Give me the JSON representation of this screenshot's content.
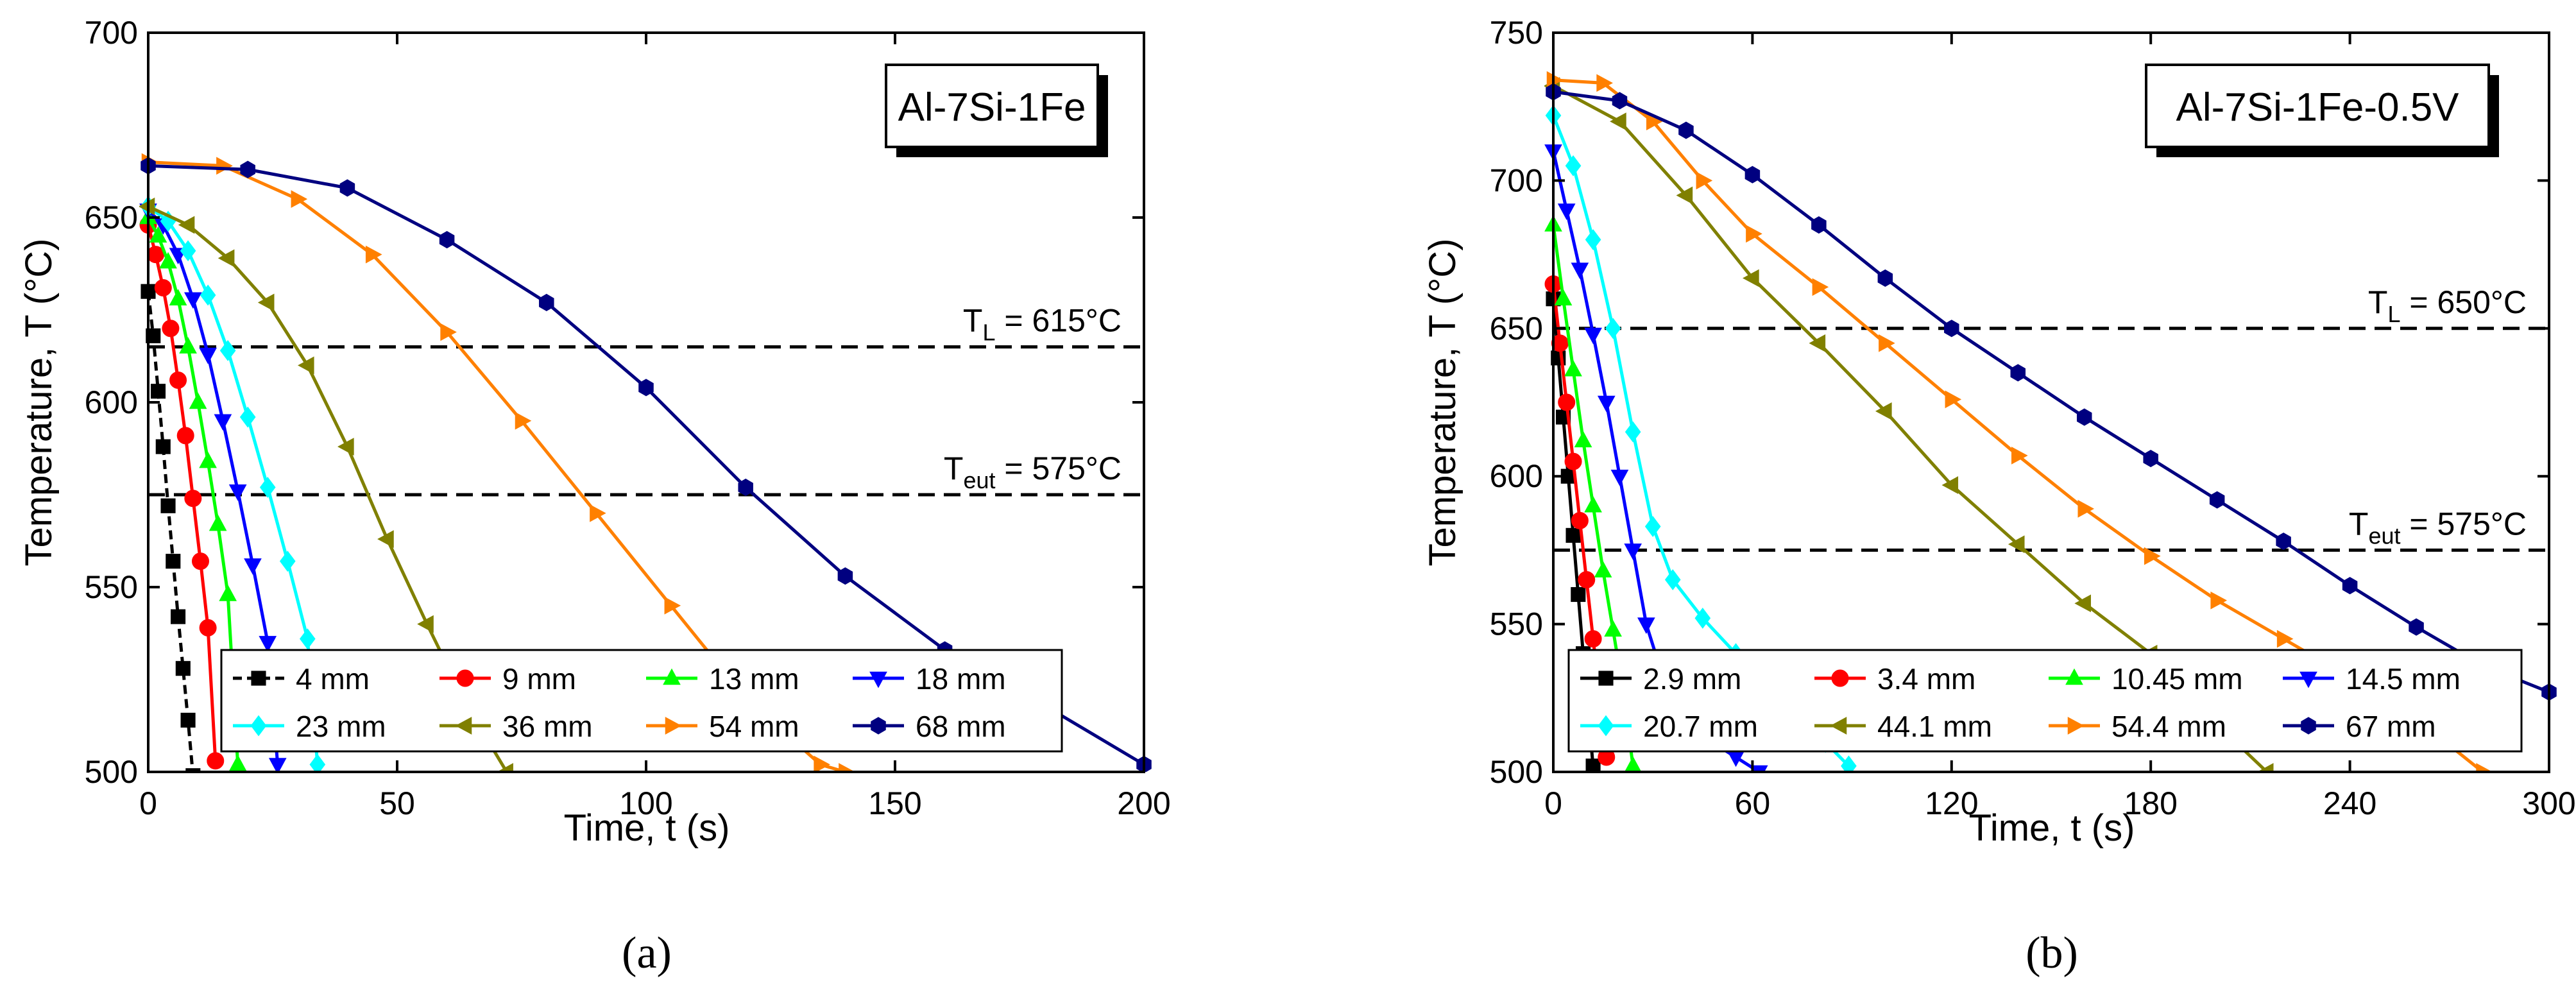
{
  "chart_data": [
    {
      "panel_label": "(a)",
      "type": "line",
      "title": "Al-7Si-1Fe",
      "xlabel": "Time, t (s)",
      "ylabel": "Temperature, T (°C)",
      "xlim": [
        0,
        200
      ],
      "ylim": [
        500,
        700
      ],
      "xticks": [
        0,
        50,
        100,
        150,
        200
      ],
      "yticks": [
        500,
        550,
        600,
        650,
        700
      ],
      "grid": false,
      "legend_position": "bottom-center",
      "reference_lines": [
        {
          "label_main": "T",
          "label_sub": "L",
          "label_rest": " = 615°C",
          "y": 615
        },
        {
          "label_main": "T",
          "label_sub": "eut",
          "label_rest": " = 575°C",
          "y": 575
        }
      ],
      "series": [
        {
          "name": "4 mm",
          "color": "#000000",
          "marker": "square",
          "dashed": true,
          "x": [
            0,
            1,
            2,
            3,
            4,
            5,
            6,
            7,
            8,
            9
          ],
          "y": [
            630,
            618,
            603,
            588,
            572,
            557,
            542,
            528,
            514,
            499
          ]
        },
        {
          "name": "9 mm",
          "color": "#ff0000",
          "marker": "circle",
          "dashed": false,
          "x": [
            0,
            1.5,
            3,
            4.5,
            6,
            7.5,
            9,
            10.5,
            12,
            13.5
          ],
          "y": [
            648,
            640,
            631,
            620,
            606,
            591,
            574,
            557,
            539,
            503
          ]
        },
        {
          "name": "13 mm",
          "color": "#00ff00",
          "marker": "triangle-up",
          "dashed": false,
          "x": [
            0,
            2,
            4,
            6,
            8,
            10,
            12,
            14,
            16,
            18
          ],
          "y": [
            650,
            645,
            638,
            628,
            615,
            600,
            584,
            567,
            548,
            502
          ]
        },
        {
          "name": "18 mm",
          "color": "#0000ff",
          "marker": "triangle-down",
          "dashed": false,
          "x": [
            0,
            3,
            6,
            9,
            12,
            15,
            18,
            21,
            24,
            26
          ],
          "y": [
            652,
            648,
            640,
            628,
            613,
            595,
            576,
            556,
            535,
            502
          ]
        },
        {
          "name": "23 mm",
          "color": "#00ffff",
          "marker": "diamond",
          "dashed": false,
          "x": [
            0,
            4,
            8,
            12,
            16,
            20,
            24,
            28,
            32,
            34
          ],
          "y": [
            653,
            649,
            641,
            629,
            614,
            596,
            577,
            557,
            536,
            502
          ]
        },
        {
          "name": "36 mm",
          "color": "#808000",
          "marker": "triangle-left",
          "dashed": false,
          "x": [
            0,
            8,
            16,
            24,
            32,
            40,
            48,
            56,
            64,
            72
          ],
          "y": [
            653,
            648,
            639,
            627,
            610,
            588,
            563,
            540,
            518,
            500
          ]
        },
        {
          "name": "54 mm",
          "color": "#ff8000",
          "marker": "triangle-right",
          "dashed": false,
          "x": [
            0,
            15,
            30,
            45,
            60,
            75,
            90,
            105,
            120,
            135,
            140
          ],
          "y": [
            665,
            664,
            655,
            640,
            619,
            595,
            570,
            545,
            520,
            502,
            500
          ]
        },
        {
          "name": "68 mm",
          "color": "#000080",
          "marker": "hexagon",
          "dashed": false,
          "x": [
            0,
            20,
            40,
            60,
            80,
            100,
            120,
            140,
            160,
            180,
            200
          ],
          "y": [
            664,
            663,
            658,
            644,
            627,
            604,
            577,
            553,
            533,
            518,
            502
          ]
        }
      ]
    },
    {
      "panel_label": "(b)",
      "type": "line",
      "title": "Al-7Si-1Fe-0.5V",
      "xlabel": "Time, t (s)",
      "ylabel": "Temperature, T (°C)",
      "xlim": [
        0,
        300
      ],
      "ylim": [
        500,
        750
      ],
      "xticks": [
        0,
        60,
        120,
        180,
        240,
        300
      ],
      "yticks": [
        500,
        550,
        600,
        650,
        700,
        750
      ],
      "grid": false,
      "legend_position": "bottom-center",
      "reference_lines": [
        {
          "label_main": "T",
          "label_sub": "L",
          "label_rest": " = 650°C",
          "y": 650
        },
        {
          "label_main": "T",
          "label_sub": "eut",
          "label_rest": " = 575°C",
          "y": 575
        }
      ],
      "series": [
        {
          "name": "2.9 mm",
          "color": "#000000",
          "marker": "square",
          "dashed": false,
          "x": [
            0,
            1.5,
            3,
            4.5,
            6,
            7.5,
            9,
            10.5,
            12
          ],
          "y": [
            660,
            640,
            620,
            600,
            580,
            560,
            540,
            520,
            502
          ]
        },
        {
          "name": "3.4 mm",
          "color": "#ff0000",
          "marker": "circle",
          "dashed": false,
          "x": [
            0,
            2,
            4,
            6,
            8,
            10,
            12,
            14,
            16
          ],
          "y": [
            665,
            645,
            625,
            605,
            585,
            565,
            545,
            525,
            505
          ]
        },
        {
          "name": "10.45 mm",
          "color": "#00ff00",
          "marker": "triangle-up",
          "dashed": false,
          "x": [
            0,
            3,
            6,
            9,
            12,
            15,
            18,
            21,
            24
          ],
          "y": [
            685,
            660,
            636,
            612,
            590,
            568,
            548,
            528,
            502
          ]
        },
        {
          "name": "14.5 mm",
          "color": "#0000ff",
          "marker": "triangle-down",
          "dashed": false,
          "x": [
            0,
            4,
            8,
            12,
            16,
            20,
            24,
            28,
            35,
            45,
            55,
            62
          ],
          "y": [
            710,
            690,
            670,
            648,
            625,
            600,
            575,
            550,
            525,
            512,
            505,
            500
          ]
        },
        {
          "name": "20.7 mm",
          "color": "#00ffff",
          "marker": "diamond",
          "dashed": false,
          "x": [
            0,
            6,
            12,
            18,
            24,
            30,
            36,
            45,
            55,
            65,
            75,
            82,
            89
          ],
          "y": [
            722,
            705,
            680,
            650,
            615,
            583,
            565,
            552,
            540,
            530,
            520,
            510,
            502
          ]
        },
        {
          "name": "44.1 mm",
          "color": "#808000",
          "marker": "triangle-left",
          "dashed": false,
          "x": [
            0,
            20,
            40,
            60,
            80,
            100,
            120,
            140,
            160,
            180,
            200,
            215
          ],
          "y": [
            732,
            720,
            695,
            667,
            645,
            622,
            597,
            577,
            557,
            540,
            516,
            500
          ]
        },
        {
          "name": "54.4 mm",
          "color": "#ff8000",
          "marker": "triangle-right",
          "dashed": false,
          "x": [
            0,
            15,
            30,
            45,
            60,
            80,
            100,
            120,
            140,
            160,
            180,
            200,
            220,
            240,
            260,
            280
          ],
          "y": [
            734,
            733,
            720,
            700,
            682,
            664,
            645,
            626,
            607,
            589,
            573,
            558,
            545,
            532,
            518,
            500
          ]
        },
        {
          "name": "67 mm",
          "color": "#000080",
          "marker": "hexagon",
          "dashed": false,
          "x": [
            0,
            20,
            40,
            60,
            80,
            100,
            120,
            140,
            160,
            180,
            200,
            220,
            240,
            260,
            280,
            300
          ],
          "y": [
            730,
            727,
            717,
            702,
            685,
            667,
            650,
            635,
            620,
            606,
            592,
            578,
            563,
            549,
            536,
            527
          ]
        }
      ]
    }
  ]
}
